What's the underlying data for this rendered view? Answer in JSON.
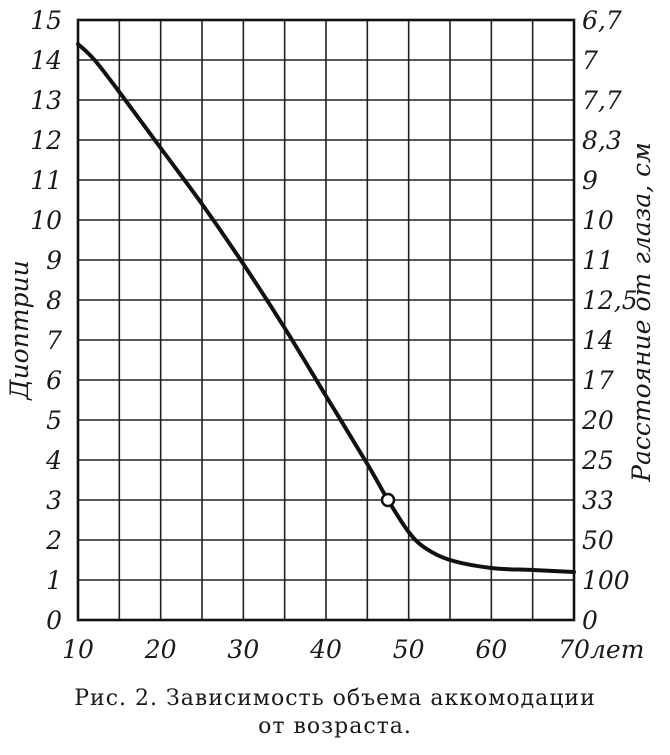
{
  "chart_data": {
    "type": "line",
    "xlabel": "",
    "x_unit_label": "лет",
    "ylabel": "Диоптрии",
    "y2label": "Расстояние от глаза, см",
    "xlim": [
      10,
      70
    ],
    "ylim": [
      0,
      15
    ],
    "x_ticks": [
      "10",
      "20",
      "30",
      "40",
      "50",
      "60",
      "70"
    ],
    "y_ticks": [
      "0",
      "1",
      "2",
      "3",
      "4",
      "5",
      "6",
      "7",
      "8",
      "9",
      "10",
      "11",
      "12",
      "13",
      "14",
      "15"
    ],
    "y2_ticks": [
      "0",
      "100",
      "50",
      "33",
      "25",
      "20",
      "17",
      "14",
      "12,5",
      "11",
      "10",
      "9",
      "8,3",
      "7,7",
      "7",
      "6,7"
    ],
    "grid": true,
    "series": [
      {
        "x": [
          10,
          12,
          15,
          20,
          25,
          30,
          35,
          40,
          45,
          47.5,
          50,
          52,
          55,
          60,
          65,
          70
        ],
        "y": [
          14.4,
          14,
          13.2,
          11.8,
          10.4,
          8.9,
          7.3,
          5.6,
          3.9,
          3.0,
          2.2,
          1.8,
          1.5,
          1.3,
          1.25,
          1.2
        ]
      }
    ],
    "marker": {
      "x": 47.5,
      "y": 3.0
    }
  },
  "caption": {
    "line1": "Рис. 2. Зависимость объема аккомодации",
    "line2": "от возраста."
  }
}
